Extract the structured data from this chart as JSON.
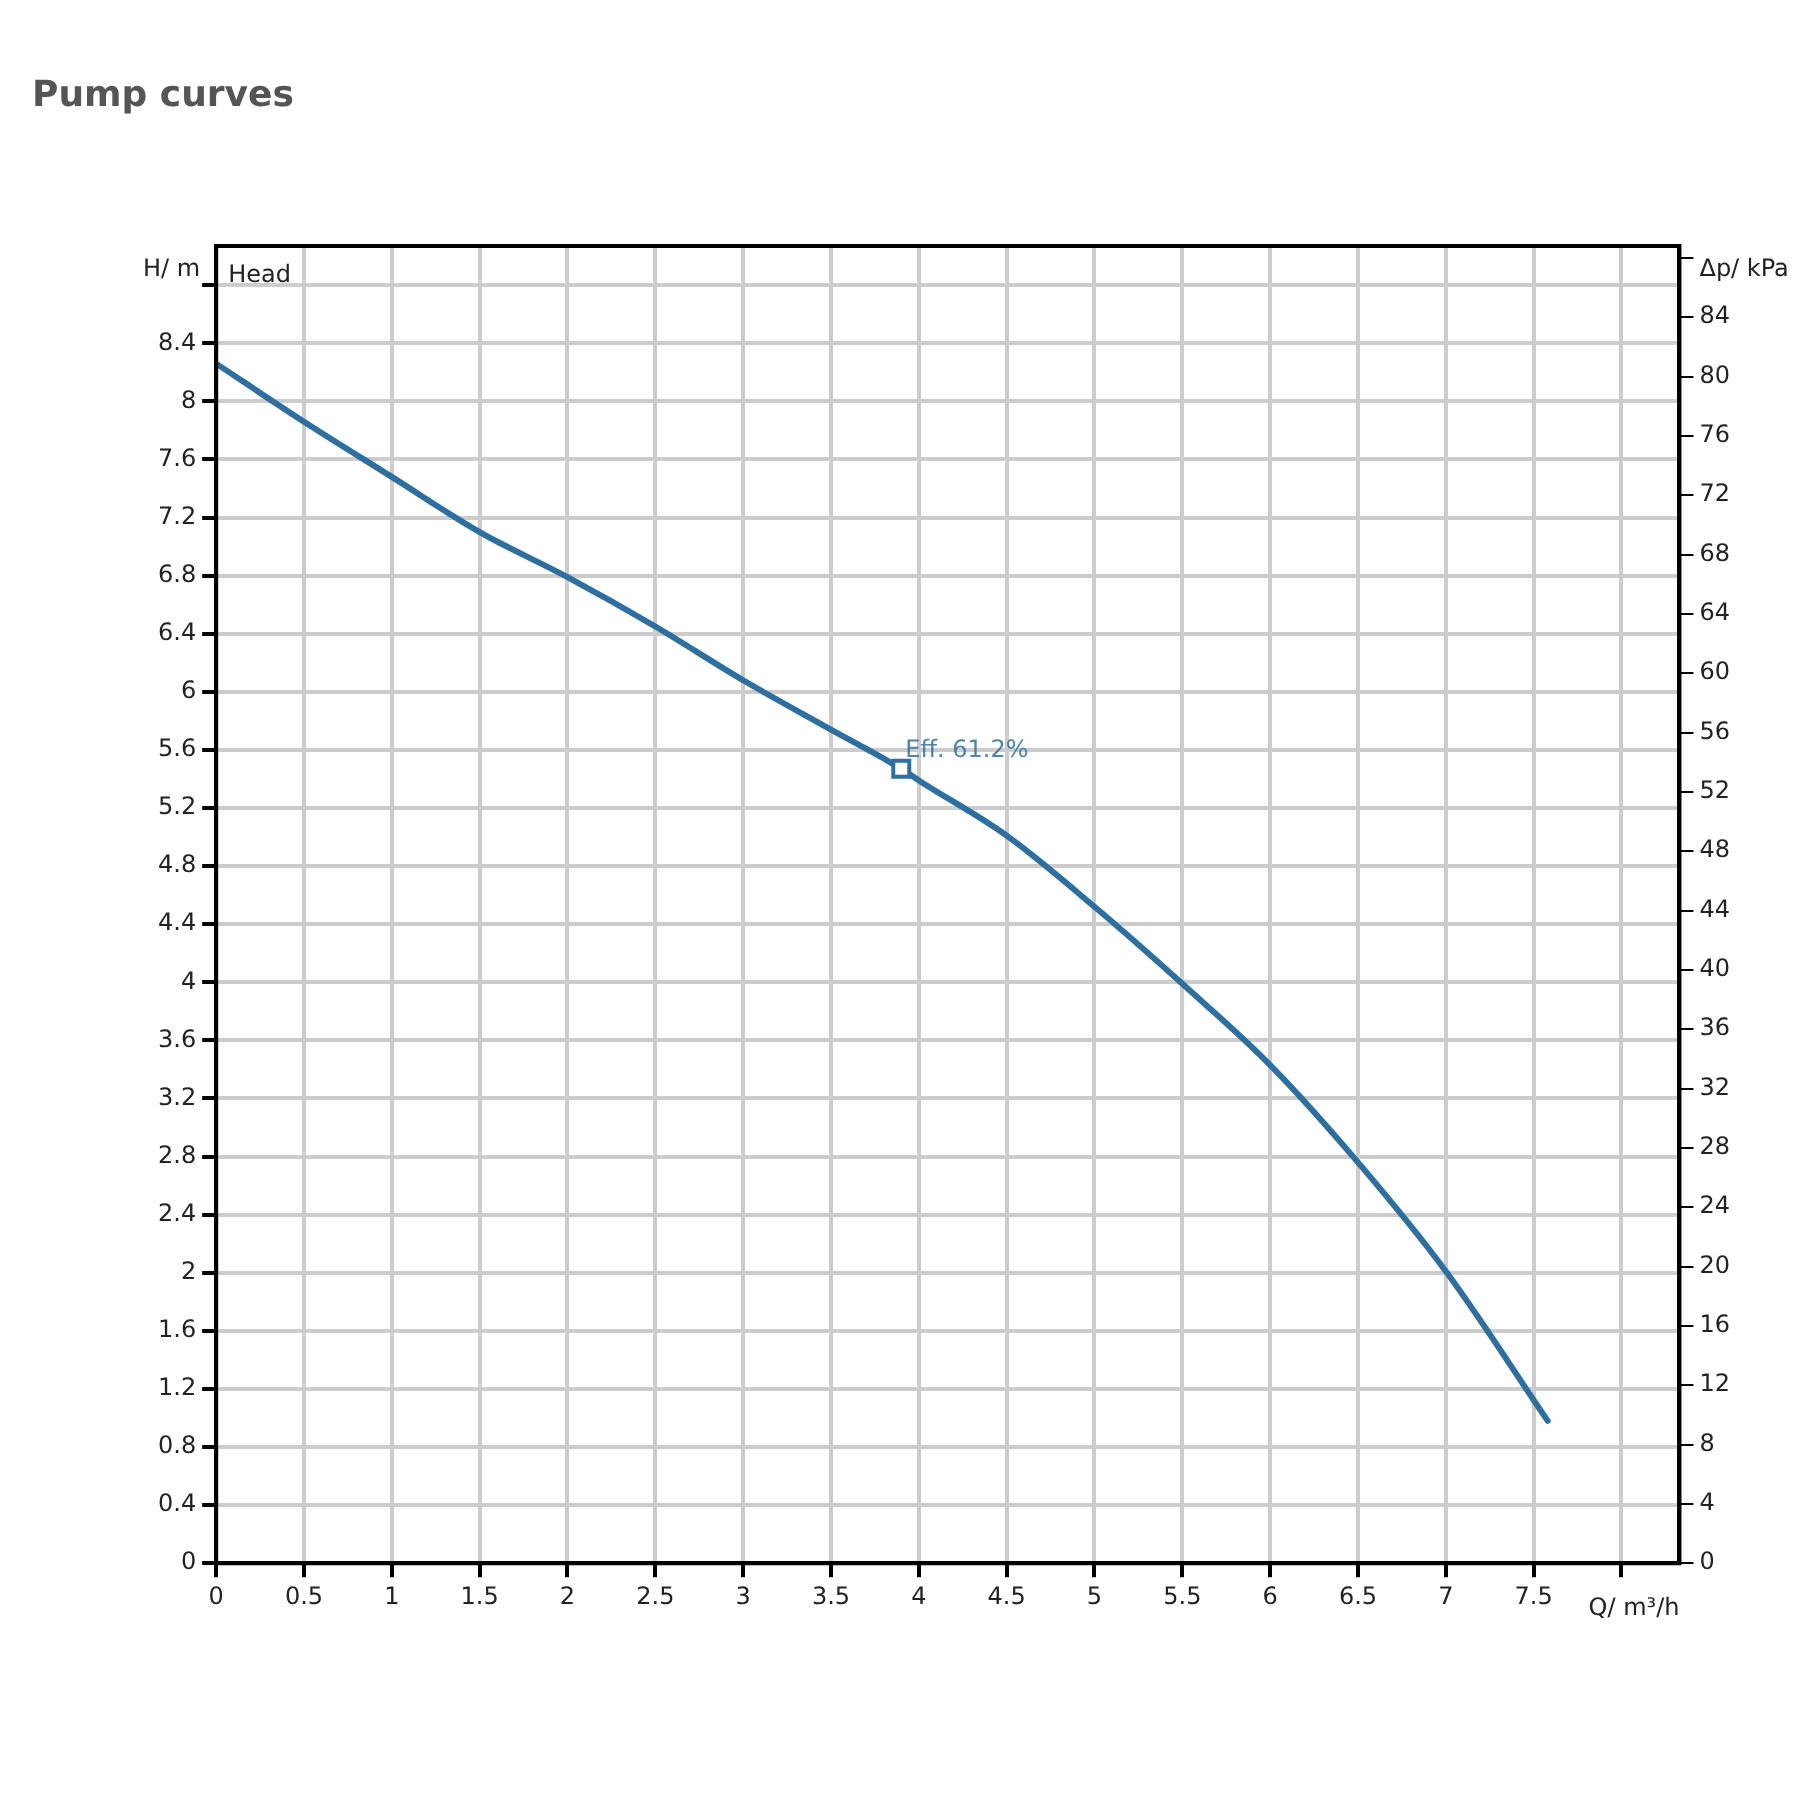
{
  "chart_data": {
    "type": "line",
    "title": "Pump curves",
    "xlabel": "Q/ m³/h",
    "ylabel": "H/ m",
    "y2label": "Δp/ kPa",
    "x": [
      0,
      0.5,
      1,
      1.5,
      2,
      2.5,
      3,
      3.5,
      3.9,
      4,
      4.5,
      5,
      5.5,
      6,
      6.5,
      7,
      7.58
    ],
    "series": [
      {
        "color": "#2f6fa0",
        "values": [
          8.26,
          7.86,
          7.48,
          7.1,
          6.79,
          6.45,
          6.08,
          5.74,
          5.47,
          5.39,
          5.01,
          4.52,
          3.99,
          3.43,
          2.76,
          2.01,
          0.98
        ]
      }
    ],
    "xlim": [
      0,
      8.33
    ],
    "ylim": [
      0,
      9.07
    ],
    "y2lim": [
      0,
      88.8
    ],
    "xticks": [
      0,
      0.5,
      1,
      1.5,
      2,
      2.5,
      3,
      3.5,
      4,
      4.5,
      5,
      5.5,
      6,
      6.5,
      7,
      7.5,
      {
        "value": 8,
        "label": null
      }
    ],
    "yticks": [
      0,
      0.4,
      0.8,
      1.2,
      1.6,
      2,
      2.4,
      2.8,
      3.2,
      3.6,
      4,
      4.4,
      4.8,
      5.2,
      5.6,
      6,
      6.4,
      6.8,
      7.2,
      7.6,
      8,
      8.4,
      {
        "value": 8.8,
        "label": null
      }
    ],
    "y2ticks": [
      0,
      4,
      8,
      12,
      16,
      20,
      24,
      28,
      32,
      36,
      40,
      44,
      48,
      52,
      56,
      60,
      64,
      68,
      72,
      76,
      80,
      84,
      {
        "value": 88,
        "label": null
      }
    ],
    "grid": true,
    "legend": false,
    "marker": "none",
    "line_style": "solid",
    "annotations": [
      "Head",
      {
        "text": "Eff. 61.2%",
        "x": 3.9,
        "y": 5.47
      }
    ]
  }
}
